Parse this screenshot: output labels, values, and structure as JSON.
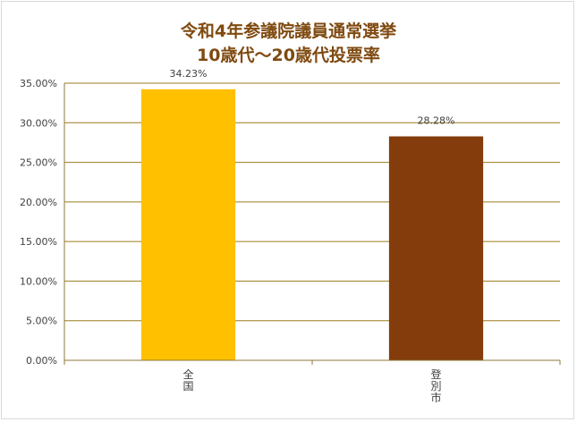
{
  "chart_data": {
    "type": "bar",
    "title_lines": [
      "令和4年参議院議員通常選挙",
      "10歳代～20歳代投票率"
    ],
    "categories": [
      "全国",
      "登別市"
    ],
    "values": [
      34.23,
      28.28
    ],
    "data_labels": [
      "34.23%",
      "28.28%"
    ],
    "bar_colors": [
      "#ffc000",
      "#843c0c"
    ],
    "ylim": [
      0,
      35
    ],
    "y_ticks": [
      "0.00%",
      "5.00%",
      "10.00%",
      "15.00%",
      "20.00%",
      "25.00%",
      "30.00%",
      "35.00%"
    ],
    "y_tick_values": [
      0,
      5,
      10,
      15,
      20,
      25,
      30,
      35
    ],
    "grid": true,
    "gridline_color": "#9c7d1c",
    "title_color": "#7f4a10",
    "legend": "none"
  }
}
